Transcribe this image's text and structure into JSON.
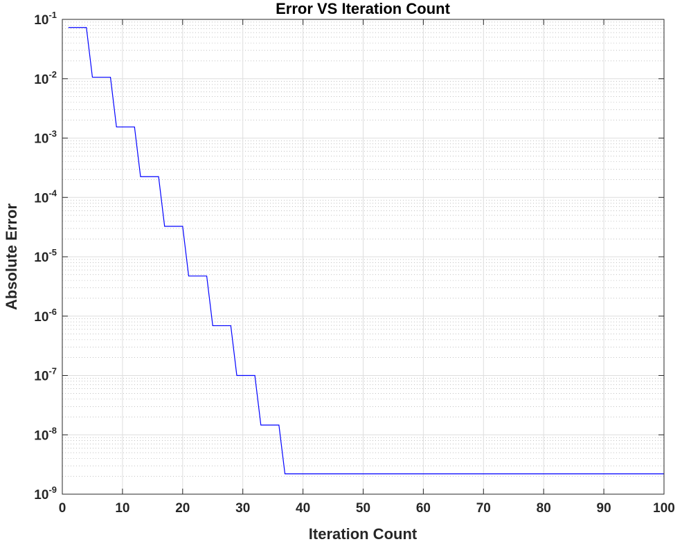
{
  "chart_data": {
    "type": "line",
    "title": "Error VS Iteration Count",
    "xlabel": "Iteration Count",
    "ylabel": "Absolute Error",
    "xlim": [
      0,
      100
    ],
    "ylim": [
      1e-09,
      0.1
    ],
    "yscale": "log",
    "grid": true,
    "minor_grid": true,
    "x_ticks": [
      0,
      10,
      20,
      30,
      40,
      50,
      60,
      70,
      80,
      90,
      100
    ],
    "x_tick_labels": [
      "0",
      "10",
      "20",
      "30",
      "40",
      "50",
      "60",
      "70",
      "80",
      "90",
      "100"
    ],
    "y_tick_exponents": [
      -9,
      -8,
      -7,
      -6,
      -5,
      -4,
      -3,
      -2,
      -1
    ],
    "y_tick_base": "10",
    "series": [
      {
        "color": "#0000ff",
        "x": [
          1,
          4,
          5,
          8,
          9,
          12,
          13,
          16,
          17,
          20,
          21,
          24,
          25,
          28,
          29,
          32,
          33,
          36,
          37,
          100
        ],
        "y": [
          0.073,
          0.073,
          0.0106,
          0.0106,
          0.00154,
          0.00154,
          0.000224,
          0.000224,
          3.26e-05,
          3.26e-05,
          4.74e-06,
          4.74e-06,
          6.9e-07,
          6.9e-07,
          1e-07,
          1e-07,
          1.46e-08,
          1.46e-08,
          2.2e-09,
          2.2e-09
        ]
      }
    ]
  }
}
